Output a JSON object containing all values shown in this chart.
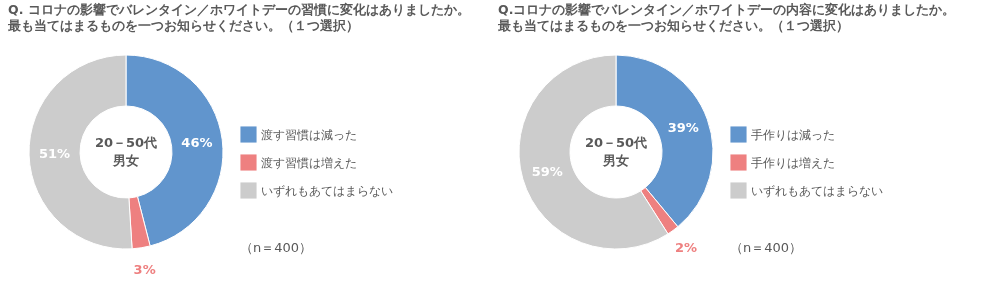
{
  "chart_data": [
    {
      "type": "donut",
      "title": "Q. コロナの影響でバレンタイン／ホワイトデーの習慣に変化はありましたか。",
      "subtitle": "最も当てはまるものを一つお知らせください。（１つ選択）",
      "categories": [
        "渡す習慣は減った",
        "渡す習慣は増えた",
        "いずれもあてはまらない"
      ],
      "values": [
        46,
        3,
        51
      ],
      "value_labels": [
        "46%",
        "3%",
        "51%"
      ],
      "colors": [
        "#6195cd",
        "#ee8080",
        "#cccccc"
      ],
      "legend": "right",
      "annotations": [
        "20－50代",
        "男女",
        "（n＝400）"
      ]
    },
    {
      "type": "donut",
      "title": "Q.コロナの影響でバレンタイン／ホワイトデーの内容に変化はありましたか。",
      "subtitle": "最も当てはまるものを一つお知らせください。（１つ選択）",
      "categories": [
        "手作りは減った",
        "手作りは増えた",
        "いずれもあてはまらない"
      ],
      "values": [
        39,
        2,
        59
      ],
      "value_labels": [
        "39%",
        "2%",
        "59%"
      ],
      "colors": [
        "#6195cd",
        "#ee8080",
        "#cccccc"
      ],
      "legend": "right",
      "annotations": [
        "20－50代",
        "男女",
        "（n＝400）"
      ]
    }
  ]
}
